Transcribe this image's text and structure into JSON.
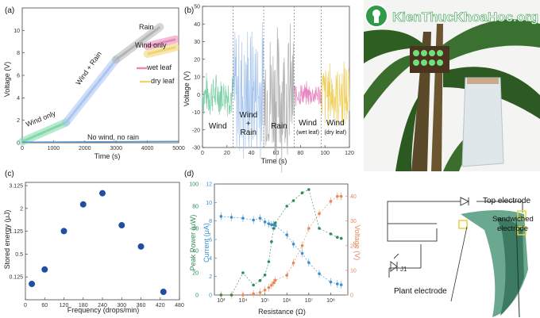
{
  "watermark": "KienThucKhoaHoc.org",
  "chart_data": [
    {
      "panel": "(a)",
      "type": "line",
      "xlabel": "Time (s)",
      "ylabel": "Voltage (V)",
      "xlim": [
        0,
        5000
      ],
      "ylim": [
        0,
        12
      ],
      "xticks": [
        0,
        1000,
        2000,
        3000,
        4000,
        5000
      ],
      "yticks": [
        0,
        2,
        4,
        6,
        8,
        10
      ],
      "series": [
        {
          "name": "Wind only",
          "color": "#7fd8a8",
          "x": [
            0,
            1400
          ],
          "y": [
            0.1,
            1.8
          ]
        },
        {
          "name": "Wind + Rain",
          "color": "#a8c4f0",
          "x": [
            1400,
            3000
          ],
          "y": [
            1.8,
            7.4
          ]
        },
        {
          "name": "Rain",
          "color": "#b3b3b3",
          "x": [
            3000,
            4400
          ],
          "y": [
            7.4,
            10.3
          ]
        },
        {
          "name": "wet leaf",
          "color": "#e888b8",
          "x": [
            4000,
            4900
          ],
          "y": [
            8.6,
            9.2
          ]
        },
        {
          "name": "dry leaf",
          "color": "#f0d470",
          "x": [
            4000,
            4900
          ],
          "y": [
            7.9,
            8.5
          ]
        },
        {
          "name": "No wind, no rain",
          "color": "#5a9ad0",
          "x": [
            0,
            5000
          ],
          "y": [
            0.05,
            0.12
          ]
        }
      ],
      "annotations": [
        "Wind only",
        "Wind + Rain",
        "Rain",
        "Wind only",
        "wet leaf",
        "dry leaf",
        "No wind, no rain"
      ]
    },
    {
      "panel": "(b)",
      "type": "line",
      "xlabel": "Time (s)",
      "ylabel": "Voltage (V)",
      "xlim": [
        0,
        120
      ],
      "ylim": [
        -30,
        50
      ],
      "xticks": [
        0,
        20,
        40,
        60,
        80,
        100,
        120
      ],
      "yticks": [
        -30,
        -20,
        -10,
        0,
        10,
        20,
        30,
        40,
        50
      ],
      "segments": [
        {
          "label": "Wind",
          "x": [
            0,
            25
          ],
          "amp": 14,
          "color": "#7fd0a8"
        },
        {
          "label": "Wind + Rain",
          "x": [
            25,
            50
          ],
          "amp": 47,
          "color": "#a9c6ee"
        },
        {
          "label": "Rain",
          "x": [
            50,
            75
          ],
          "amp": 45,
          "color": "#b0b0b0"
        },
        {
          "label": "Wind (wet leaf)",
          "x": [
            75,
            97
          ],
          "amp": 8,
          "color": "#e884c0"
        },
        {
          "label": "Wind (dry leaf)",
          "x": [
            97,
            120
          ],
          "amp": 22,
          "color": "#f0d060"
        }
      ]
    },
    {
      "panel": "(c)",
      "type": "scatter",
      "xlabel": "Frequency (drops/min)",
      "ylabel": "Stored energy (μJ)",
      "xlim": [
        0,
        480
      ],
      "xticks": [
        0,
        60,
        120,
        180,
        240,
        300,
        360,
        420,
        480
      ],
      "yticks": [
        "0.125",
        "0.5",
        "1.125",
        "2",
        "3.125"
      ],
      "color": "#1f4fa0",
      "x": [
        20,
        60,
        120,
        180,
        240,
        300,
        360,
        430
      ],
      "y": [
        0.06,
        0.22,
        1.13,
        2.18,
        2.72,
        1.33,
        0.68,
        0.015
      ]
    },
    {
      "panel": "(d)",
      "type": "scatter",
      "xlabel": "Resistance (Ω)",
      "ylabel_left": "Peak Power (μW)",
      "ylabel_mid": "Current (μA)",
      "ylabel_right": "Voltage (V)",
      "xscale": "log",
      "xlim": [
        500,
        600000000
      ],
      "xtick_values": [
        1000,
        10000,
        100000,
        1000000,
        10000000,
        100000000
      ],
      "xticks": [
        "10³",
        "10⁴",
        "10⁵",
        "10⁶",
        "10⁷",
        "10⁸"
      ],
      "power_ylim": [
        0,
        100
      ],
      "power_ticks": [
        0,
        20,
        40,
        60,
        80,
        100
      ],
      "current_ylim": [
        0,
        12
      ],
      "current_ticks": [
        0,
        2,
        4,
        6,
        8,
        10,
        12
      ],
      "voltage_ylim": [
        0,
        45
      ],
      "voltage_ticks": [
        0,
        10,
        20,
        30,
        40
      ],
      "x": [
        1000,
        3000,
        10000,
        30000,
        60000,
        100000,
        150000,
        200000,
        250000,
        300000,
        1000000,
        2000000,
        5000000,
        10000000,
        30000000,
        100000000,
        200000000,
        300000000
      ],
      "power": [
        0,
        0,
        20,
        9,
        13,
        18,
        30,
        48,
        60,
        65,
        80,
        85,
        92,
        95,
        60,
        55,
        52,
        51
      ],
      "current": [
        8.5,
        8.4,
        8.3,
        8.1,
        8.3,
        7.9,
        7.7,
        7.6,
        7.6,
        7.5,
        6.5,
        5.5,
        4.5,
        3.5,
        2.3,
        1.4,
        1.2,
        1.1
      ],
      "voltage": [
        0,
        0,
        0,
        0.5,
        1,
        2,
        3,
        4,
        5,
        6,
        8,
        13,
        20,
        27,
        33,
        38,
        40,
        40
      ],
      "colors": {
        "power": "#2e8b57",
        "current": "#3a8fd0",
        "voltage": "#e8875a"
      }
    }
  ],
  "schematic": {
    "labels": {
      "top": "Top electrode",
      "sandwiched": "Sandwiched electrode",
      "plant": "Plant electrode",
      "device": "J1"
    }
  }
}
